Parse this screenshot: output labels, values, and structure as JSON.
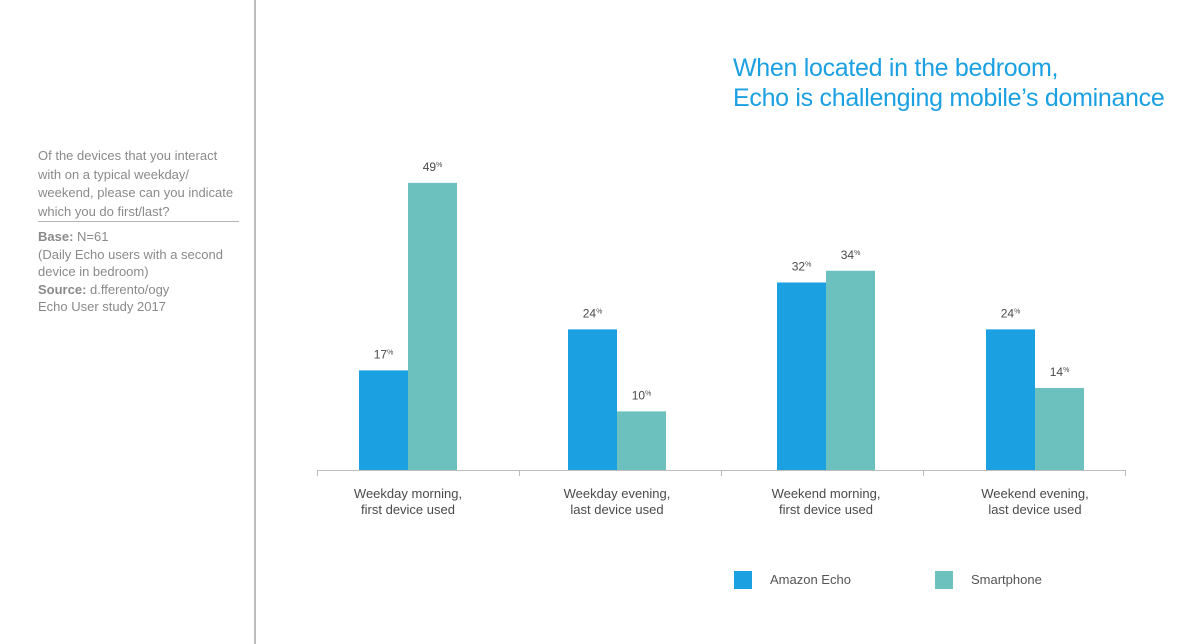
{
  "sidebar": {
    "question": "Of the devices that you interact with on a typical weekday/ weekend, please can you indicate which you do first/last?",
    "base_label": "Base:",
    "base_value": "N=61",
    "base_note": "(Daily Echo users with a second device in bedroom)",
    "source_label": "Source:",
    "source_value": "d.fferento/ogy",
    "source_note": "Echo User study 2017"
  },
  "colors": {
    "echo": "#1ba0e2",
    "smartphone": "#6cc1bf",
    "title": "#1ba0e2",
    "axis": "#bdbdbd"
  },
  "chart_data": {
    "type": "bar",
    "title": [
      "When located in the bedroom,",
      "Echo is challenging mobile’s dominance"
    ],
    "categories": [
      [
        "Weekday morning,",
        "first device used"
      ],
      [
        "Weekday evening,",
        "last device used"
      ],
      [
        "Weekend morning,",
        "first device used"
      ],
      [
        "Weekend evening,",
        "last device used"
      ]
    ],
    "series": [
      {
        "name": "Amazon Echo",
        "values": [
          17,
          24,
          32,
          24
        ]
      },
      {
        "name": "Smartphone",
        "values": [
          49,
          10,
          34,
          14
        ]
      }
    ],
    "value_suffix": "%",
    "ylim": [
      0,
      50
    ],
    "grid": false,
    "legend": "bottom"
  }
}
